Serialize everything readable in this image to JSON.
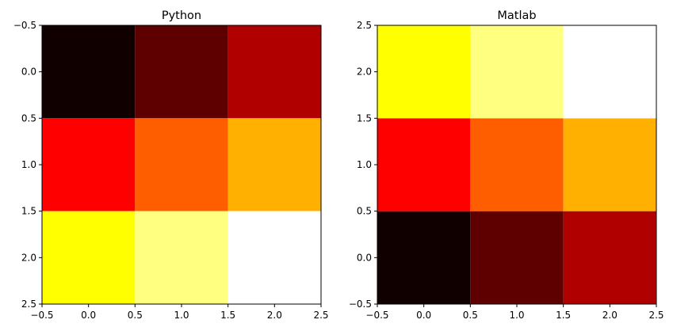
{
  "chart_data": [
    {
      "type": "heatmap",
      "title": "Python",
      "xlabel": "",
      "ylabel": "",
      "xlim": [
        -0.5,
        2.5
      ],
      "ylim": [
        2.5,
        -0.5
      ],
      "x_ticks": [
        "−0.5",
        "0.0",
        "0.5",
        "1.0",
        "1.5",
        "2.0",
        "2.5"
      ],
      "y_ticks": [
        "−0.5",
        "0.0",
        "0.5",
        "1.0",
        "1.5",
        "2.0",
        "2.5"
      ],
      "colormap": "hot",
      "values": [
        [
          0,
          1,
          2
        ],
        [
          3,
          4,
          5
        ],
        [
          6,
          7,
          8
        ]
      ],
      "colors": [
        [
          "#100000",
          "#5e0000",
          "#b00000"
        ],
        [
          "#ff0000",
          "#ff5e00",
          "#ffb000"
        ],
        [
          "#ffff00",
          "#ffff80",
          "#ffffff"
        ]
      ]
    },
    {
      "type": "heatmap",
      "title": "Matlab",
      "xlabel": "",
      "ylabel": "",
      "xlim": [
        -0.5,
        2.5
      ],
      "ylim": [
        -0.5,
        2.5
      ],
      "x_ticks": [
        "−0.5",
        "0.0",
        "0.5",
        "1.0",
        "1.5",
        "2.0",
        "2.5"
      ],
      "y_ticks": [
        "−0.5",
        "0.0",
        "0.5",
        "1.0",
        "1.5",
        "2.0",
        "2.5"
      ],
      "colormap": "hot",
      "values": [
        [
          0,
          1,
          2
        ],
        [
          3,
          4,
          5
        ],
        [
          6,
          7,
          8
        ]
      ],
      "colors": [
        [
          "#100000",
          "#5e0000",
          "#b00000"
        ],
        [
          "#ff0000",
          "#ff5e00",
          "#ffb000"
        ],
        [
          "#ffff00",
          "#ffff80",
          "#ffffff"
        ]
      ]
    }
  ]
}
